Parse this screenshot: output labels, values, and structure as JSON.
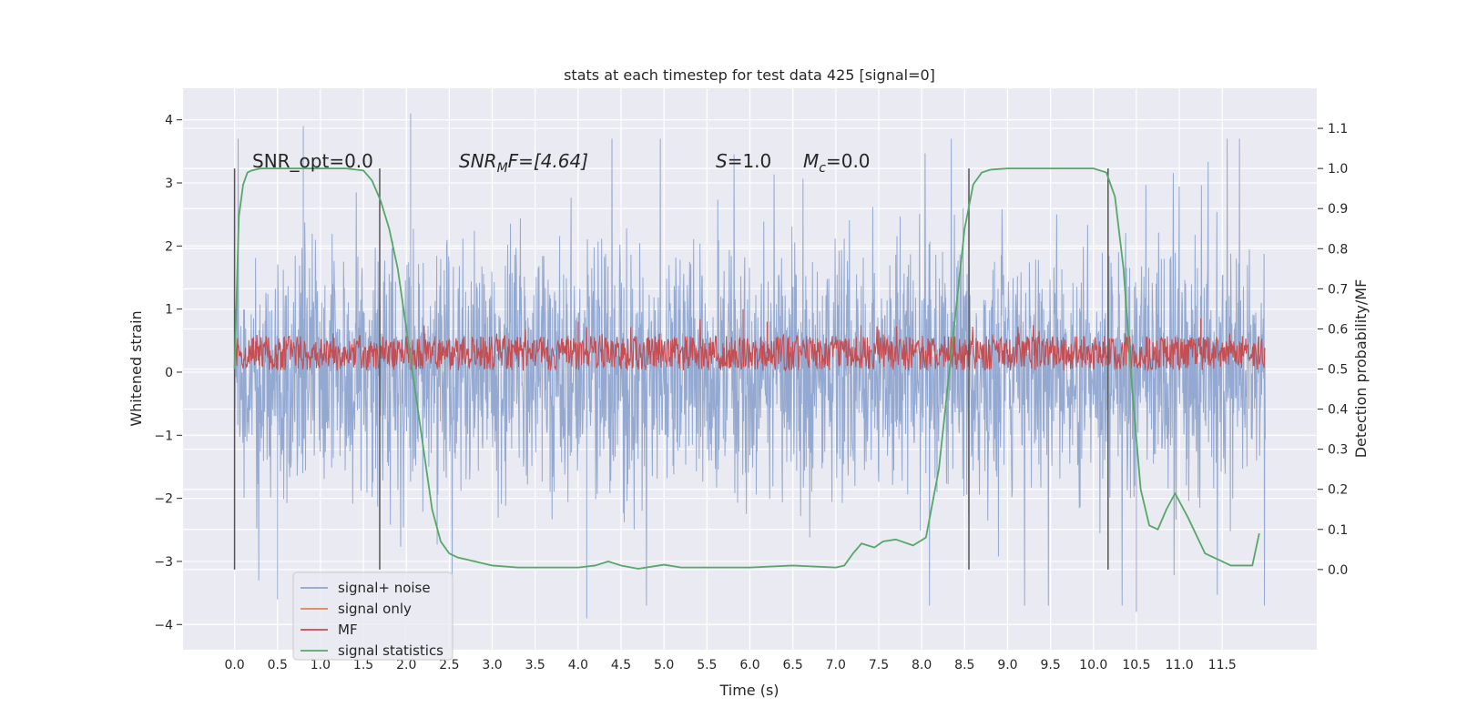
{
  "chart_data": {
    "type": "line",
    "title": "stats at each timestep for test data 425 [signal=0]",
    "xlabel": "Time (s)",
    "ylabel": "Whitened strain",
    "ylabel_right": "Detection probability/MF",
    "xlim": [
      -0.6,
      12.6
    ],
    "ylim": [
      -4.4,
      4.5
    ],
    "ylim_right": [
      -0.2,
      1.2
    ],
    "x_ticks": [
      "0.0",
      "0.5",
      "1.0",
      "1.5",
      "2.0",
      "2.5",
      "3.0",
      "3.5",
      "4.0",
      "4.5",
      "5.0",
      "5.5",
      "6.0",
      "6.5",
      "7.0",
      "7.5",
      "8.0",
      "8.5",
      "9.0",
      "9.5",
      "10.0",
      "10.5",
      "11.0",
      "11.5"
    ],
    "y_ticks": [
      "4",
      "3",
      "2",
      "1",
      "0",
      "−1",
      "−2",
      "−3",
      "−4"
    ],
    "y_ticks_right": [
      "1.1",
      "1.0",
      "0.9",
      "0.8",
      "0.7",
      "0.6",
      "0.5",
      "0.4",
      "0.3",
      "0.2",
      "0.1",
      "0.0"
    ],
    "grid": true,
    "legend_position": "lower-left",
    "annotations": {
      "snr_opt": "SNR_opt=0.0",
      "snr_mf_main": "SNR",
      "snr_mf_sub": "M",
      "snr_mf_rest": "F=[4.64]",
      "s_main": "S",
      "s_rest": "=1.0",
      "mc_main": "M",
      "mc_sub": "c",
      "mc_rest": "=0.0"
    },
    "series": [
      {
        "name": "signal+ noise",
        "color": "#8fa5cf",
        "description_of_shape": "dense noise, range -4..4, most within -1.8..1.8",
        "x_range": [
          0.0,
          12.0
        ],
        "envelope_typical": [
          -1.8,
          1.8
        ],
        "extremes": [
          [
            0.8,
            3.9
          ],
          [
            2.05,
            4.1
          ],
          [
            4.1,
            -3.9
          ],
          [
            10.5,
            -3.8
          ],
          [
            0.5,
            -3.6
          ]
        ]
      },
      {
        "name": "signal only",
        "color": "#dd8452",
        "x": [],
        "y": []
      },
      {
        "name": "MF",
        "color": "#c44e52",
        "x_range": [
          0.0,
          12.0
        ],
        "mean": 0.3,
        "spikes": [
          [
            5.92,
            1.0
          ],
          [
            4.0,
            0.8
          ],
          [
            6.2,
            0.8
          ],
          [
            11.25,
            0.85
          ]
        ]
      },
      {
        "name": "signal statistics",
        "color": "#55a868",
        "axis": "right",
        "x": [
          0.0,
          0.05,
          0.1,
          0.15,
          0.2,
          0.3,
          0.5,
          1.0,
          1.3,
          1.5,
          1.6,
          1.7,
          1.8,
          1.9,
          2.0,
          2.1,
          2.2,
          2.3,
          2.4,
          2.5,
          2.6,
          2.8,
          3.0,
          3.3,
          3.6,
          4.0,
          4.2,
          4.35,
          4.5,
          4.7,
          5.0,
          5.2,
          5.5,
          6.0,
          6.5,
          7.0,
          7.1,
          7.2,
          7.3,
          7.45,
          7.55,
          7.7,
          7.9,
          8.05,
          8.2,
          8.35,
          8.5,
          8.6,
          8.7,
          8.8,
          9.0,
          9.5,
          10.0,
          10.15,
          10.25,
          10.35,
          10.45,
          10.55,
          10.65,
          10.75,
          10.85,
          10.95,
          11.1,
          11.3,
          11.6,
          11.85,
          11.93
        ],
        "y": [
          0.5,
          0.88,
          0.96,
          0.99,
          0.995,
          1.0,
          1.0,
          1.0,
          1.0,
          0.995,
          0.97,
          0.92,
          0.85,
          0.75,
          0.6,
          0.45,
          0.3,
          0.15,
          0.07,
          0.04,
          0.03,
          0.02,
          0.01,
          0.005,
          0.005,
          0.005,
          0.01,
          0.02,
          0.01,
          0.002,
          0.012,
          0.005,
          0.005,
          0.005,
          0.01,
          0.005,
          0.01,
          0.04,
          0.065,
          0.055,
          0.07,
          0.075,
          0.06,
          0.08,
          0.25,
          0.55,
          0.85,
          0.96,
          0.99,
          0.997,
          1.0,
          1.0,
          1.0,
          0.99,
          0.93,
          0.75,
          0.45,
          0.2,
          0.11,
          0.1,
          0.15,
          0.19,
          0.13,
          0.04,
          0.01,
          0.01,
          0.09
        ]
      }
    ],
    "vertical_markers": [
      0.0,
      1.69,
      8.55,
      10.17
    ],
    "vertical_marker_span_right": [
      0.0,
      1.0
    ],
    "legend": [
      {
        "label": "signal+ noise",
        "color": "#8fa5cf"
      },
      {
        "label": "signal only",
        "color": "#dd8452"
      },
      {
        "label": "MF",
        "color": "#c44e52"
      },
      {
        "label": "signal statistics",
        "color": "#55a868"
      }
    ]
  }
}
